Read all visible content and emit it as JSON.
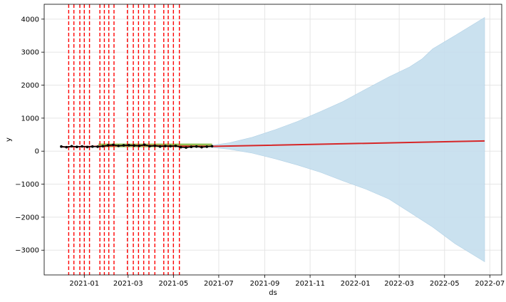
{
  "chart_data": {
    "type": "line",
    "title": "",
    "xlabel": "ds",
    "ylabel": "y",
    "xlim": [
      "2020-11-08",
      "2022-07-17"
    ],
    "ylim": [
      -3750,
      4450
    ],
    "grid": true,
    "x_tick_labels": [
      "2021-01",
      "2021-03",
      "2021-05",
      "2021-07",
      "2021-09",
      "2021-11",
      "2022-01",
      "2022-03",
      "2022-05",
      "2022-07"
    ],
    "x_ticks": [
      "2021-01-01",
      "2021-03-01",
      "2021-05-01",
      "2021-07-01",
      "2021-09-01",
      "2021-11-01",
      "2022-01-01",
      "2022-03-01",
      "2022-05-01",
      "2022-07-01"
    ],
    "y_ticks": [
      -3000,
      -2000,
      -1000,
      0,
      1000,
      2000,
      3000,
      4000
    ],
    "y_tick_labels": [
      "−3000",
      "−2000",
      "−1000",
      "0",
      "1000",
      "2000",
      "3000",
      "4000"
    ],
    "changepoints": [
      "2020-12-11",
      "2020-12-18",
      "2020-12-26",
      "2021-01-01",
      "2021-01-08",
      "2021-01-22",
      "2021-01-28",
      "2021-02-03",
      "2021-02-10",
      "2021-02-28",
      "2021-03-08",
      "2021-03-15",
      "2021-03-22",
      "2021-03-29",
      "2021-04-06",
      "2021-04-18",
      "2021-04-24",
      "2021-05-01",
      "2021-05-09"
    ],
    "history_end": "2021-06-22",
    "forecast_end": "2022-06-24",
    "observed": {
      "x": [
        "2020-12-01",
        "2020-12-08",
        "2020-12-15",
        "2020-12-22",
        "2020-12-29",
        "2021-01-05",
        "2021-01-12",
        "2021-01-19",
        "2021-01-26",
        "2021-02-02",
        "2021-02-09",
        "2021-02-16",
        "2021-02-23",
        "2021-03-02",
        "2021-03-09",
        "2021-03-16",
        "2021-03-23",
        "2021-03-30",
        "2021-04-06",
        "2021-04-13",
        "2021-04-20",
        "2021-04-27",
        "2021-05-04",
        "2021-05-11",
        "2021-05-18",
        "2021-05-25",
        "2021-06-01",
        "2021-06-08",
        "2021-06-15",
        "2021-06-22"
      ],
      "y": [
        140,
        120,
        150,
        130,
        145,
        125,
        140,
        135,
        150,
        175,
        190,
        160,
        175,
        180,
        170,
        160,
        195,
        150,
        165,
        140,
        155,
        150,
        160,
        120,
        110,
        130,
        140,
        120,
        135,
        150
      ]
    },
    "trend": {
      "x": [
        "2020-12-01",
        "2021-01-15",
        "2021-02-15",
        "2021-03-15",
        "2021-04-15",
        "2021-05-15",
        "2021-06-22",
        "2022-06-24"
      ],
      "y": [
        130,
        145,
        165,
        175,
        160,
        150,
        145,
        310
      ]
    },
    "interval_upper": {
      "x": [
        "2021-06-22",
        "2021-07-15",
        "2021-08-15",
        "2021-09-15",
        "2021-10-15",
        "2021-11-15",
        "2021-12-15",
        "2022-01-15",
        "2022-02-15",
        "2022-03-15",
        "2022-04-01",
        "2022-04-15",
        "2022-05-15",
        "2022-06-24"
      ],
      "y": [
        180,
        250,
        420,
        650,
        900,
        1200,
        1500,
        1880,
        2250,
        2550,
        2800,
        3100,
        3500,
        4050
      ]
    },
    "interval_lower": {
      "x": [
        "2021-06-22",
        "2021-07-15",
        "2021-08-15",
        "2021-09-15",
        "2021-10-15",
        "2021-11-15",
        "2021-12-15",
        "2022-01-15",
        "2022-02-15",
        "2022-03-15",
        "2022-04-15",
        "2022-05-15",
        "2022-06-24"
      ],
      "y": [
        110,
        60,
        -60,
        -230,
        -420,
        -640,
        -900,
        -1150,
        -1450,
        -1850,
        -2300,
        -2800,
        -3350
      ]
    },
    "colors": {
      "observed": "#000000",
      "trend": "#d62728",
      "changepoint": "#ff0000",
      "interval": "#c5deee",
      "history_band": "#7fb636",
      "grid": "#e5e5e5"
    }
  }
}
